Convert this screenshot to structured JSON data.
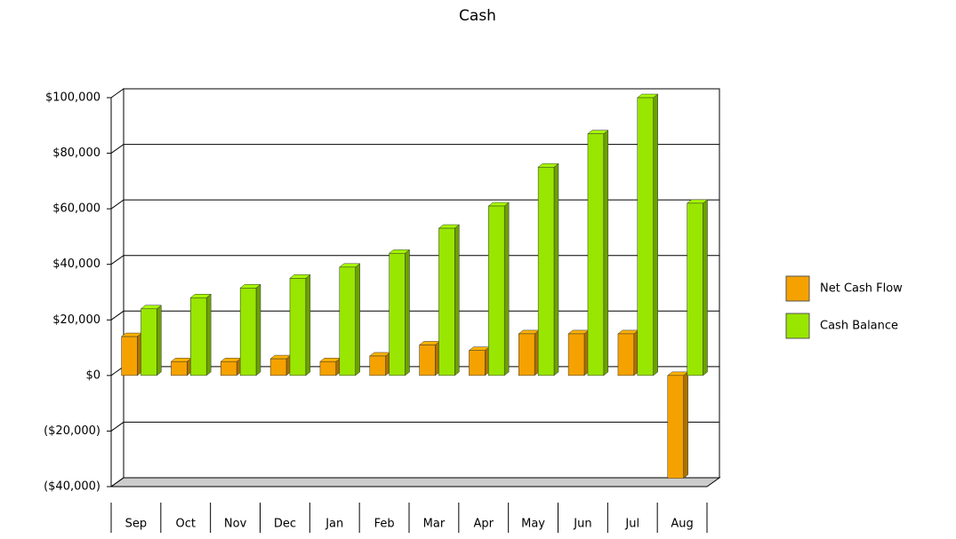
{
  "chart_data": {
    "type": "bar",
    "title": "Cash",
    "categories": [
      "Sep",
      "Oct",
      "Nov",
      "Dec",
      "Jan",
      "Feb",
      "Mar",
      "Apr",
      "May",
      "Jun",
      "Jul",
      "Aug"
    ],
    "series": [
      {
        "name": "Net Cash Flow",
        "color": "#f5a200",
        "values": [
          14000,
          5000,
          5000,
          6000,
          5000,
          7000,
          11000,
          9000,
          15000,
          15000,
          15000,
          -37000
        ]
      },
      {
        "name": "Cash Balance",
        "color": "#99e600",
        "values": [
          24000,
          28000,
          31500,
          35000,
          39000,
          44000,
          53000,
          61000,
          75000,
          87000,
          100000,
          62000
        ]
      }
    ],
    "ylim": [
      -40000,
      100000
    ],
    "yticks": [
      {
        "value": -40000,
        "label": "($40,000)"
      },
      {
        "value": -20000,
        "label": "($20,000)"
      },
      {
        "value": 0,
        "label": "$0"
      },
      {
        "value": 20000,
        "label": "$20,000"
      },
      {
        "value": 40000,
        "label": "$40,000"
      },
      {
        "value": 60000,
        "label": "$60,000"
      },
      {
        "value": 80000,
        "label": "$80,000"
      },
      {
        "value": 100000,
        "label": "$100,000"
      }
    ],
    "grid": true,
    "legend": "right"
  }
}
